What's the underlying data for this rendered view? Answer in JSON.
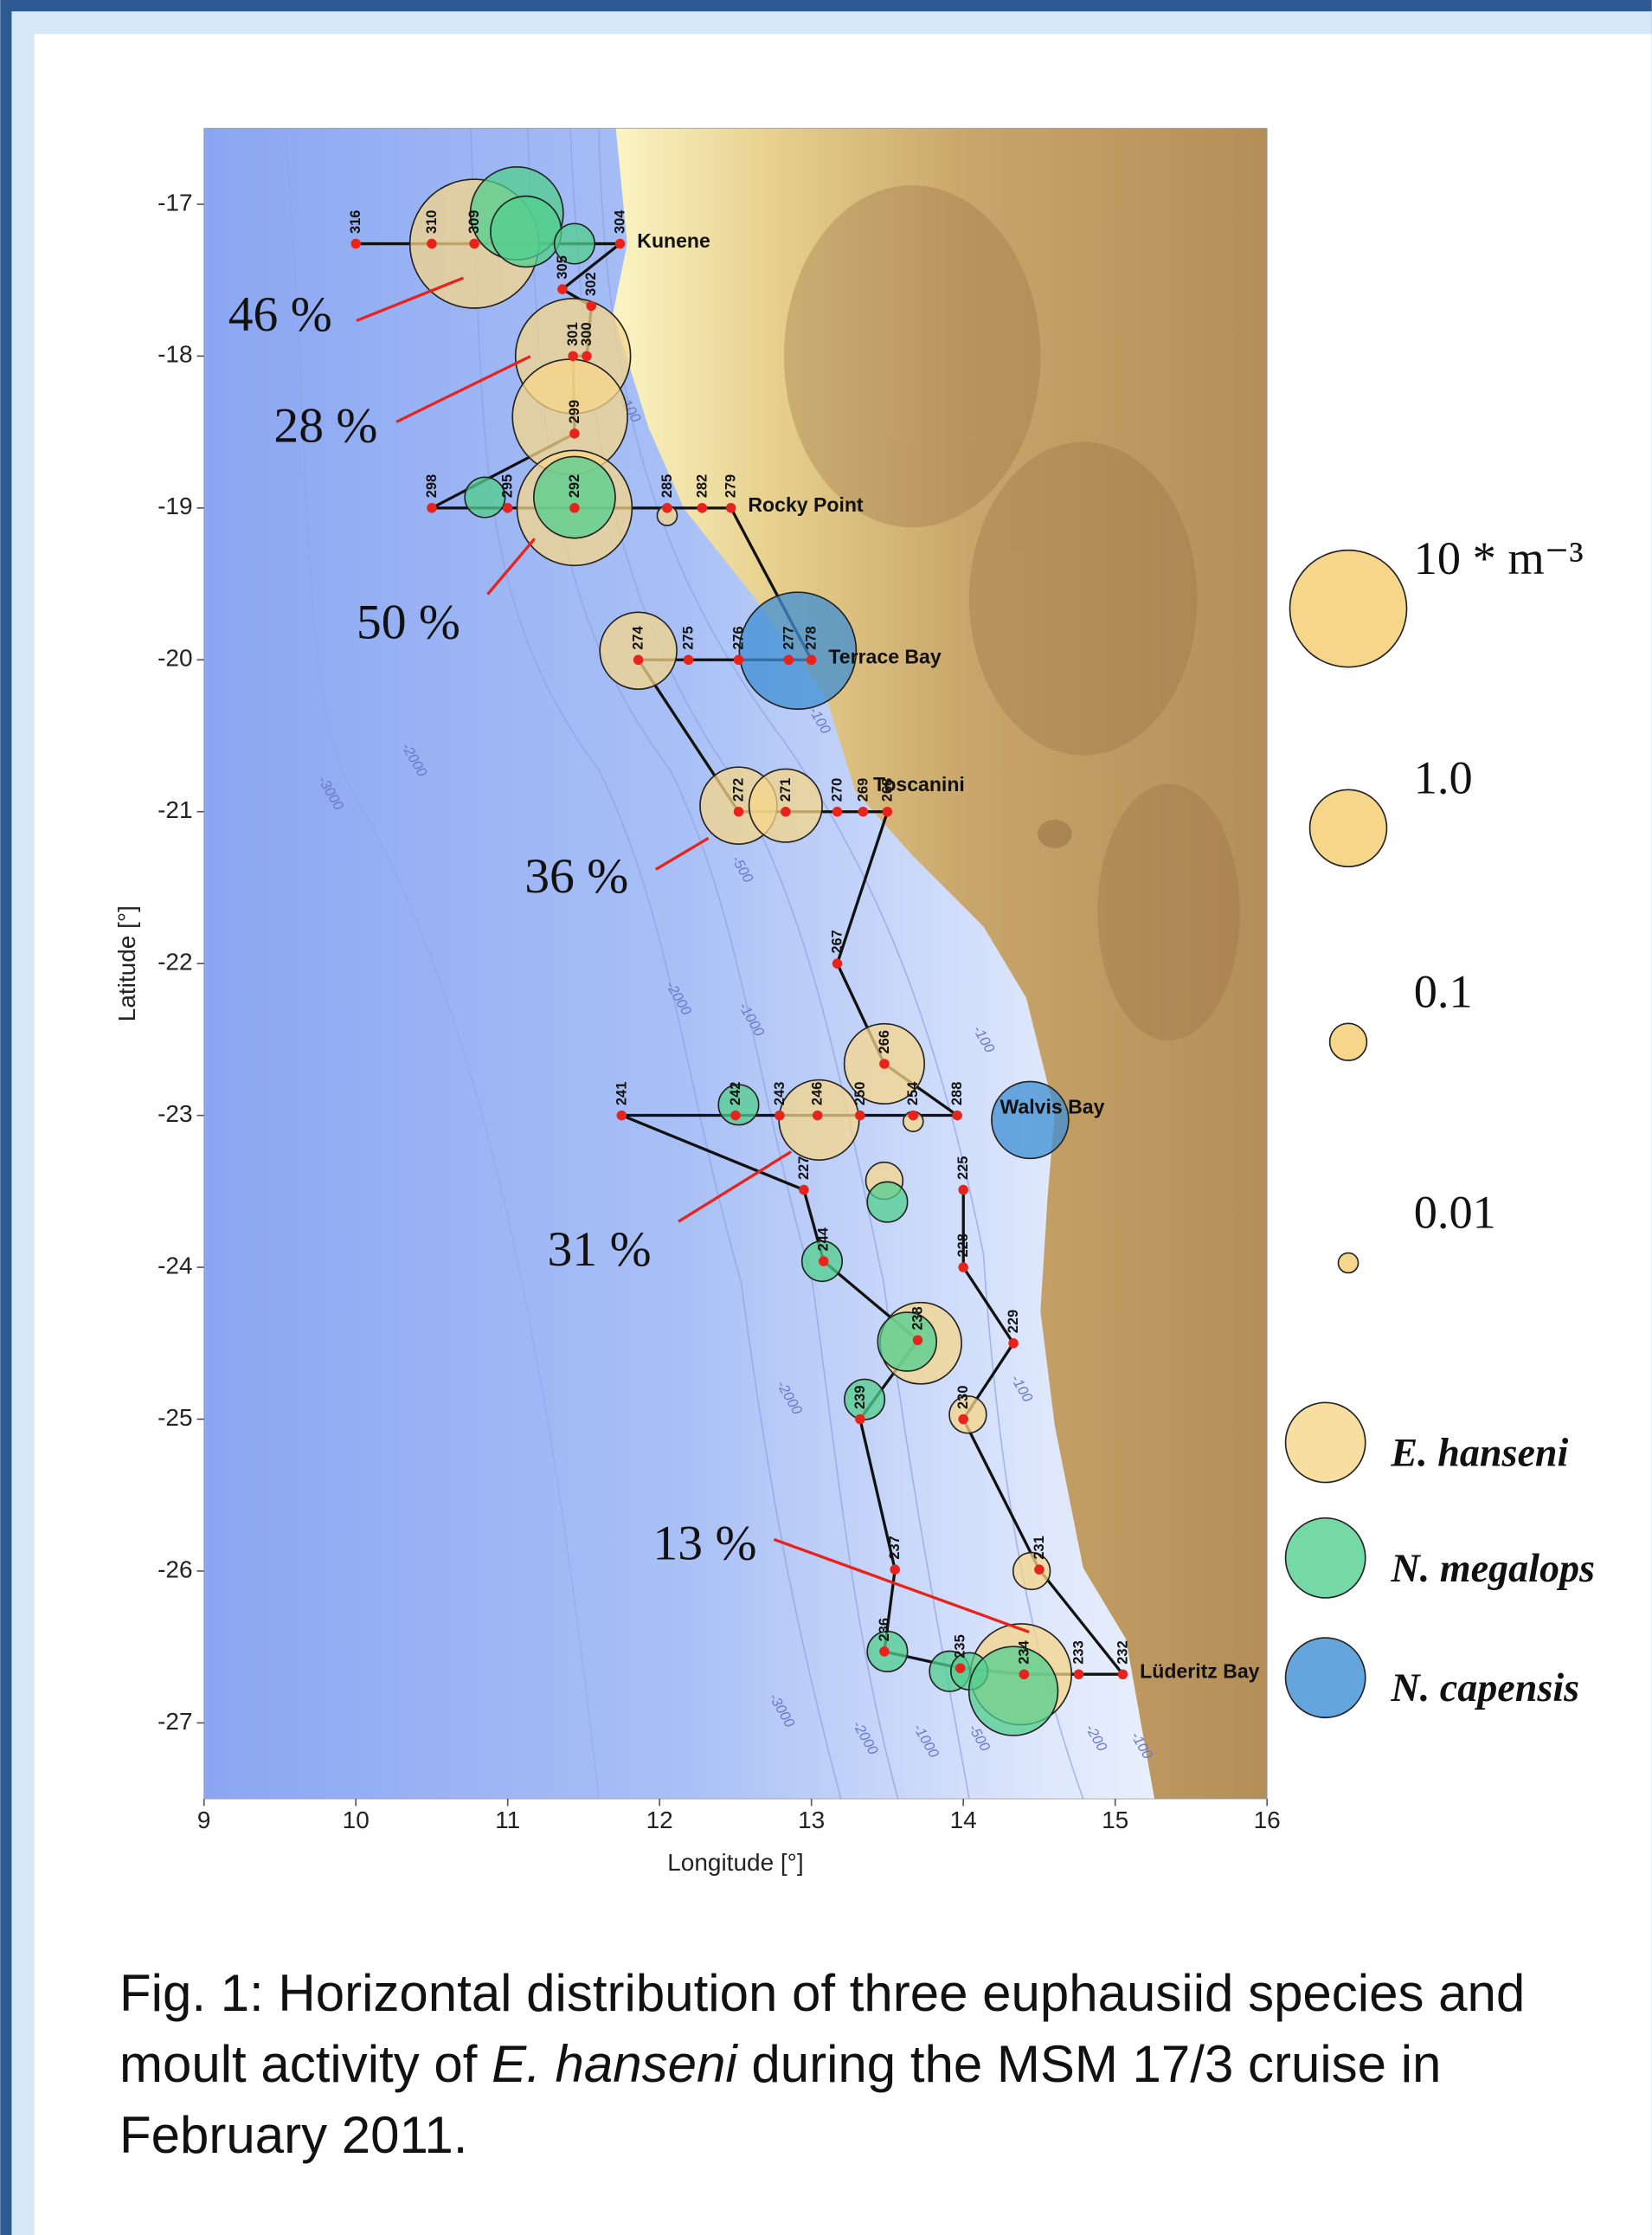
{
  "chart_data": {
    "type": "bubble-map",
    "xlabel": "Longitude [°]",
    "ylabel": "Latitude [°]",
    "xlim": [
      9,
      16
    ],
    "ylim": [
      -27.5,
      -16.5
    ],
    "xticks": [
      9,
      10,
      11,
      12,
      13,
      14,
      15,
      16
    ],
    "yticks": [
      -17,
      -18,
      -19,
      -20,
      -21,
      -22,
      -23,
      -24,
      -25,
      -26,
      -27
    ],
    "stations": [
      {
        "id": "316",
        "lon": 10.0,
        "lat": -17.26
      },
      {
        "id": "310",
        "lon": 10.5,
        "lat": -17.26
      },
      {
        "id": "309",
        "lon": 10.78,
        "lat": -17.26
      },
      {
        "id": "304",
        "lon": 11.74,
        "lat": -17.26,
        "place": "Kunene"
      },
      {
        "id": "305",
        "lon": 11.36,
        "lat": -17.56
      },
      {
        "id": "302",
        "lon": 11.55,
        "lat": -17.67
      },
      {
        "id": "300",
        "lon": 11.52,
        "lat": -18.0
      },
      {
        "id": "301",
        "lon": 11.43,
        "lat": -18.0
      },
      {
        "id": "299",
        "lon": 11.44,
        "lat": -18.51
      },
      {
        "id": "298",
        "lon": 10.5,
        "lat": -19.0
      },
      {
        "id": "295",
        "lon": 11.0,
        "lat": -19.0
      },
      {
        "id": "292",
        "lon": 11.44,
        "lat": -19.0
      },
      {
        "id": "285",
        "lon": 12.05,
        "lat": -19.0
      },
      {
        "id": "282",
        "lon": 12.28,
        "lat": -19.0
      },
      {
        "id": "279",
        "lon": 12.47,
        "lat": -19.0,
        "place": "Rocky Point"
      },
      {
        "id": "278",
        "lon": 13.0,
        "lat": -20.0,
        "place": "Terrace Bay"
      },
      {
        "id": "277",
        "lon": 12.85,
        "lat": -20.0
      },
      {
        "id": "276",
        "lon": 12.52,
        "lat": -20.0
      },
      {
        "id": "275",
        "lon": 12.19,
        "lat": -20.0
      },
      {
        "id": "274",
        "lon": 11.86,
        "lat": -20.0
      },
      {
        "id": "272",
        "lon": 12.52,
        "lat": -21.0
      },
      {
        "id": "271",
        "lon": 12.83,
        "lat": -21.0
      },
      {
        "id": "270",
        "lon": 13.17,
        "lat": -21.0
      },
      {
        "id": "269",
        "lon": 13.34,
        "lat": -21.0
      },
      {
        "id": "268",
        "lon": 13.5,
        "lat": -21.0,
        "place": "Toscanini"
      },
      {
        "id": "267",
        "lon": 13.17,
        "lat": -22.0
      },
      {
        "id": "266",
        "lon": 13.48,
        "lat": -22.66
      },
      {
        "id": "288",
        "lon": 13.96,
        "lat": -23.0,
        "place": "Walvis Bay"
      },
      {
        "id": "254",
        "lon": 13.67,
        "lat": -23.0
      },
      {
        "id": "250",
        "lon": 13.32,
        "lat": -23.0
      },
      {
        "id": "246",
        "lon": 13.04,
        "lat": -23.0
      },
      {
        "id": "243",
        "lon": 12.79,
        "lat": -23.0
      },
      {
        "id": "242",
        "lon": 12.5,
        "lat": -23.0
      },
      {
        "id": "241",
        "lon": 11.75,
        "lat": -23.0
      },
      {
        "id": "227",
        "lon": 12.95,
        "lat": -23.49
      },
      {
        "id": "244",
        "lon": 13.08,
        "lat": -23.96
      },
      {
        "id": "238",
        "lon": 13.7,
        "lat": -24.48
      },
      {
        "id": "239",
        "lon": 13.32,
        "lat": -25.0
      },
      {
        "id": "237",
        "lon": 13.55,
        "lat": -25.99
      },
      {
        "id": "236",
        "lon": 13.48,
        "lat": -26.53
      },
      {
        "id": "235",
        "lon": 13.98,
        "lat": -26.64
      },
      {
        "id": "234",
        "lon": 14.4,
        "lat": -26.68
      },
      {
        "id": "233",
        "lon": 14.76,
        "lat": -26.68
      },
      {
        "id": "232",
        "lon": 15.05,
        "lat": -26.68,
        "place": "Lüderitz Bay"
      },
      {
        "id": "231",
        "lon": 14.5,
        "lat": -25.99
      },
      {
        "id": "230",
        "lon": 14.0,
        "lat": -25.0
      },
      {
        "id": "229",
        "lon": 14.33,
        "lat": -24.5
      },
      {
        "id": "228",
        "lon": 14.0,
        "lat": -24.0
      },
      {
        "id": "225",
        "lon": 14.0,
        "lat": -23.49
      }
    ],
    "series": [
      {
        "name": "E. hanseni",
        "color": "#f6d68a",
        "lon": [
          10.78,
          11.43,
          11.41,
          11.44,
          12.05,
          11.86,
          12.52,
          12.83,
          13.48,
          13.05,
          13.67,
          13.48,
          13.72,
          14.03,
          14.45,
          14.38
        ],
        "lat": [
          -17.26,
          -18.0,
          -18.4,
          -19.0,
          -19.05,
          -19.94,
          -20.96,
          -20.96,
          -22.66,
          -23.03,
          -23.04,
          -23.43,
          -24.5,
          -24.97,
          -26.0,
          -26.68
        ],
        "values": [
          20,
          9,
          9,
          9,
          0.01,
          1,
          1,
          0.8,
          1.2,
          1.2,
          0.01,
          0.1,
          1.3,
          0.1,
          0.1,
          4
        ]
      },
      {
        "name": "N. megalops",
        "color": "#52cf8e",
        "lon": [
          11.06,
          11.12,
          11.44,
          10.85,
          11.44,
          12.52,
          13.5,
          13.07,
          13.63,
          13.35,
          13.5,
          13.91,
          14.04,
          14.33
        ],
        "lat": [
          -17.06,
          -17.18,
          -17.26,
          -18.93,
          -18.93,
          -22.93,
          -23.57,
          -23.96,
          -24.49,
          -24.87,
          -26.53,
          -26.66,
          -26.66,
          -26.79
        ],
        "values": [
          2.5,
          0.7,
          0.12,
          0.12,
          1.3,
          0.12,
          0.12,
          0.12,
          0.35,
          0.12,
          0.12,
          0.12,
          0.1,
          2
        ]
      },
      {
        "name": "N. capensis",
        "color": "#3f8fd4",
        "lon": [
          12.91,
          14.44
        ],
        "lat": [
          -19.94,
          -23.03
        ],
        "values": [
          10,
          1
        ]
      }
    ],
    "size_legend": [
      {
        "value": 10,
        "label": "10 * m⁻³"
      },
      {
        "value": 1,
        "label": "1.0"
      },
      0.1,
      0.01
    ],
    "annotations": [
      "46 %",
      "28 %",
      "50 %",
      "36 %",
      "31 %",
      "13 %"
    ],
    "contour_labels": [
      {
        "text": "-100",
        "lon": 11.8,
        "lat": -18.35
      },
      {
        "text": "-2000",
        "lon": 10.38,
        "lat": -20.66
      },
      {
        "text": "-3000",
        "lon": 9.83,
        "lat": -20.88
      },
      {
        "text": "-500",
        "lon": 12.54,
        "lat": -21.38
      },
      {
        "text": "-100",
        "lon": 13.05,
        "lat": -20.4
      },
      {
        "text": "-2000",
        "lon": 12.12,
        "lat": -22.23
      },
      {
        "text": "-1000",
        "lon": 12.6,
        "lat": -22.37
      },
      {
        "text": "-100",
        "lon": 14.13,
        "lat": -22.5
      },
      {
        "text": "-2000",
        "lon": 12.85,
        "lat": -24.86
      },
      {
        "text": "-100",
        "lon": 14.38,
        "lat": -24.8
      },
      {
        "text": "-3000",
        "lon": 12.8,
        "lat": -26.92
      },
      {
        "text": "-2000",
        "lon": 13.35,
        "lat": -27.1
      },
      {
        "text": "-1000",
        "lon": 13.75,
        "lat": -27.12
      },
      {
        "text": "-500",
        "lon": 14.1,
        "lat": -27.1
      },
      {
        "text": "-200",
        "lon": 14.87,
        "lat": -27.1
      },
      {
        "text": "-100",
        "lon": 15.17,
        "lat": -27.15
      }
    ]
  },
  "caption": [
    "Fig. 1: Horizontal distribution of three euphausiid species and moult activity of ",
    "E. hanseni",
    " during the MSM 17/3 cruise in February 2011."
  ]
}
